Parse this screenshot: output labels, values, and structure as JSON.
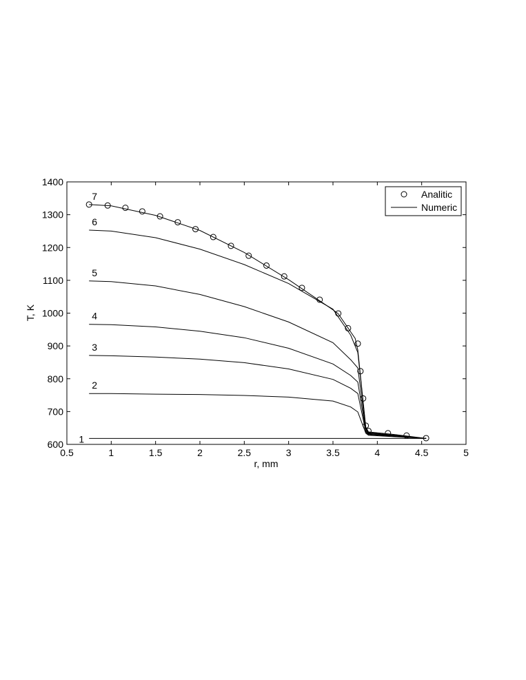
{
  "chart_data": {
    "type": "line",
    "xlabel": "r, mm",
    "ylabel": "T, K",
    "xlim": [
      0.5,
      5
    ],
    "ylim": [
      600,
      1400
    ],
    "xticks": [
      0.5,
      1,
      1.5,
      2,
      2.5,
      3,
      3.5,
      4,
      4.5,
      5
    ],
    "yticks": [
      600,
      700,
      800,
      900,
      1000,
      1100,
      1200,
      1300,
      1400
    ],
    "xtick_labels": [
      "0.5",
      "1",
      "1.5",
      "2",
      "2.5",
      "3",
      "3.5",
      "4",
      "4.5",
      "5"
    ],
    "ytick_labels": [
      "600",
      "700",
      "800",
      "900",
      "1000",
      "1100",
      "1200",
      "1300",
      "1400"
    ],
    "grid": false,
    "legend_position": "top-right",
    "legend": [
      {
        "label": "Analitic",
        "marker": "circle"
      },
      {
        "label": "Numeric",
        "marker": "line"
      }
    ],
    "series": [
      {
        "curve_label": "1",
        "kind": "numeric",
        "x": [
          0.75,
          1.5,
          2.5,
          3.5,
          3.78,
          3.87,
          3.9,
          4.2,
          4.55
        ],
        "y": [
          618,
          618,
          618,
          618,
          618,
          618,
          618,
          618,
          618
        ]
      },
      {
        "curve_label": "2",
        "kind": "numeric",
        "x": [
          0.75,
          1.0,
          1.5,
          2.0,
          2.5,
          3.0,
          3.5,
          3.7,
          3.78,
          3.87,
          3.9,
          4.2,
          4.55
        ],
        "y": [
          755,
          755,
          753,
          752,
          749,
          744,
          732,
          714,
          699,
          634,
          628,
          623,
          618
        ]
      },
      {
        "curve_label": "3",
        "kind": "numeric",
        "x": [
          0.75,
          1.0,
          1.5,
          2.0,
          2.5,
          3.0,
          3.5,
          3.7,
          3.78,
          3.87,
          3.9,
          4.2,
          4.55
        ],
        "y": [
          871,
          870,
          866,
          860,
          849,
          830,
          798,
          771,
          755,
          638,
          630,
          625,
          618
        ]
      },
      {
        "curve_label": "4",
        "kind": "numeric",
        "x": [
          0.75,
          1.0,
          1.5,
          2.0,
          2.5,
          3.0,
          3.5,
          3.7,
          3.78,
          3.87,
          3.9,
          4.2,
          4.55
        ],
        "y": [
          966,
          965,
          958,
          945,
          925,
          893,
          845,
          810,
          790,
          642,
          632,
          626,
          618
        ]
      },
      {
        "curve_label": "5",
        "kind": "numeric",
        "x": [
          0.75,
          1.0,
          1.5,
          2.0,
          2.5,
          3.0,
          3.5,
          3.7,
          3.78,
          3.87,
          3.9,
          4.2,
          4.55
        ],
        "y": [
          1098,
          1096,
          1083,
          1057,
          1020,
          973,
          910,
          858,
          833,
          646,
          634,
          627,
          618
        ]
      },
      {
        "curve_label": "6",
        "kind": "numeric",
        "x": [
          0.75,
          1.0,
          1.5,
          2.0,
          2.5,
          3.0,
          3.5,
          3.7,
          3.78,
          3.87,
          3.9,
          4.2,
          4.55
        ],
        "y": [
          1253,
          1250,
          1230,
          1195,
          1148,
          1090,
          1012,
          933,
          880,
          650,
          636,
          628,
          618
        ]
      },
      {
        "curve_label": "7",
        "kind": "numeric",
        "x": [
          0.75,
          1.0,
          1.5,
          2.0,
          2.5,
          3.0,
          3.5,
          3.56,
          3.75,
          3.78,
          3.87,
          3.9,
          4.2,
          4.55
        ],
        "y": [
          1331,
          1327,
          1298,
          1252,
          1185,
          1102,
          1010,
          998,
          923,
          888,
          653,
          638,
          630,
          618
        ]
      },
      {
        "name": "Analitic",
        "kind": "analytic",
        "x": [
          0.75,
          0.96,
          1.16,
          1.35,
          1.55,
          1.75,
          1.95,
          2.15,
          2.35,
          2.55,
          2.75,
          2.95,
          3.15,
          3.35,
          3.56,
          3.67,
          3.78,
          3.81,
          3.84,
          3.87,
          3.9,
          4.12,
          4.33,
          4.55
        ],
        "y": [
          1331,
          1328,
          1321,
          1310,
          1295,
          1277,
          1256,
          1232,
          1205,
          1175,
          1145,
          1112,
          1077,
          1041,
          999,
          954,
          907,
          823,
          740,
          657,
          641,
          634,
          627,
          619
        ]
      }
    ]
  }
}
